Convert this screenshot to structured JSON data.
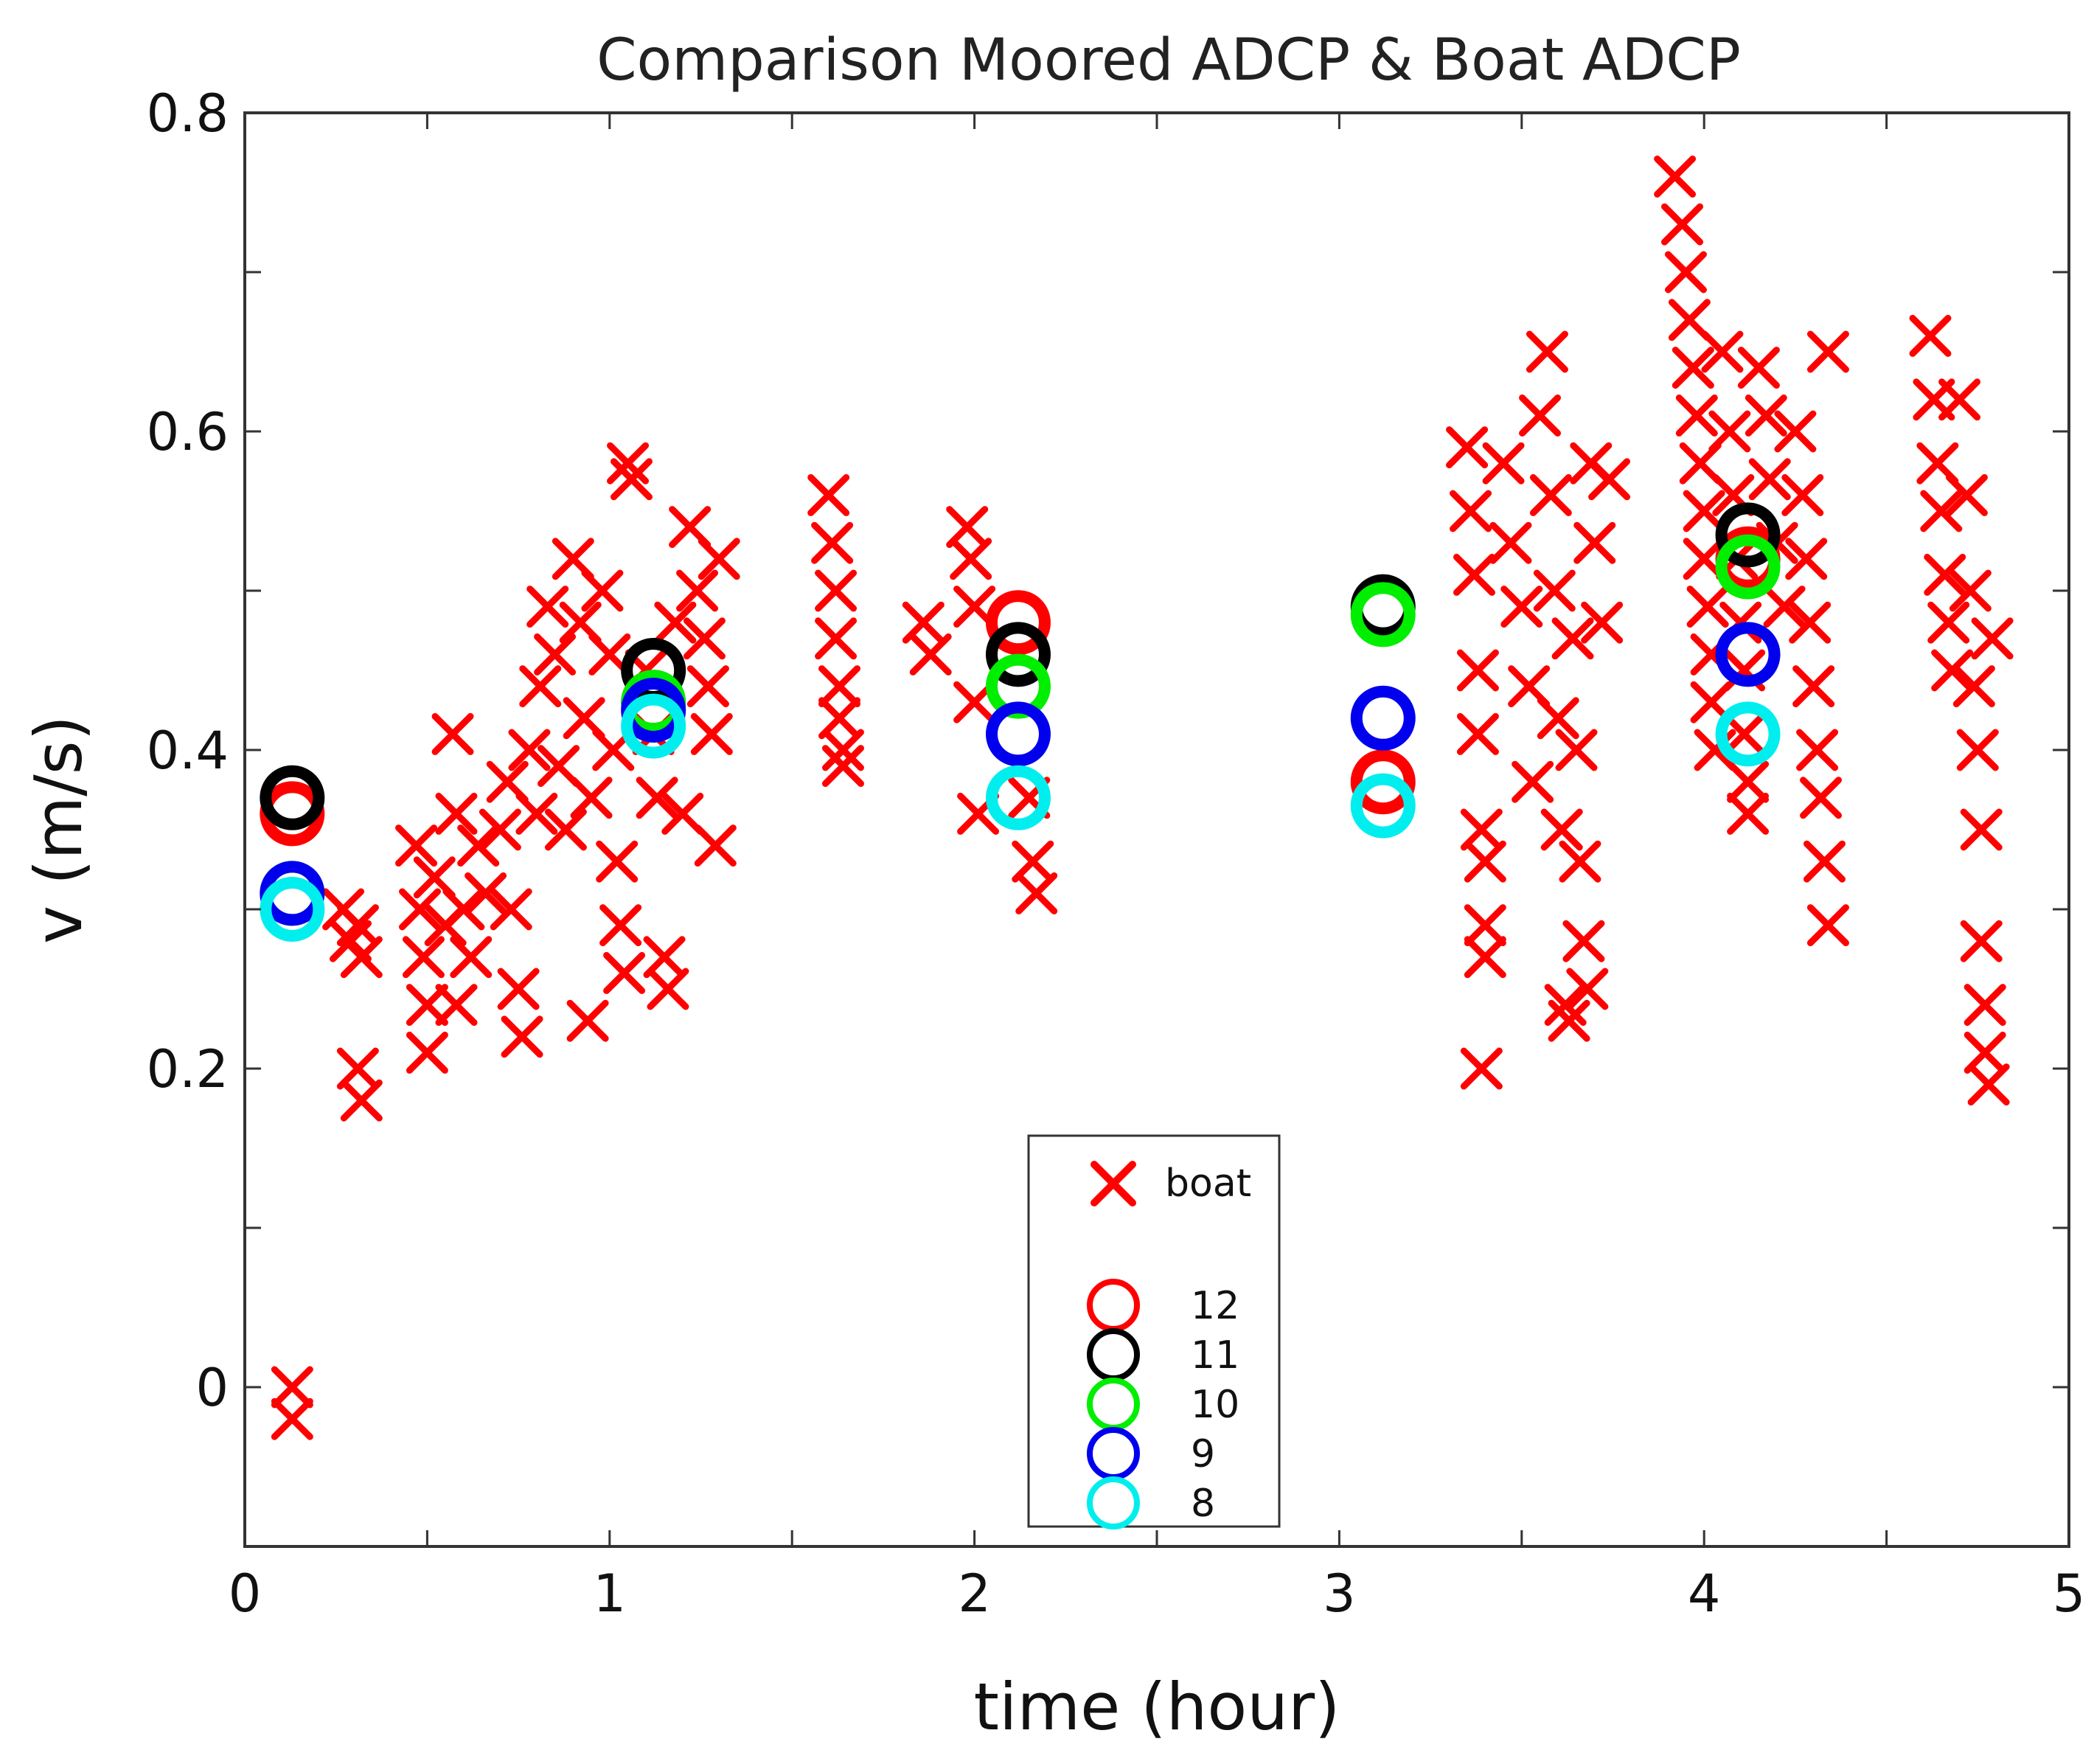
{
  "chart_data": {
    "type": "scatter",
    "title": "Comparison Moored ADCP & Boat ADCP",
    "xlabel": "time (hour)",
    "ylabel": "v (m/s)",
    "xlim": [
      0,
      5
    ],
    "ylim": [
      -0.1,
      0.8
    ],
    "xticks": [
      0,
      1,
      2,
      3,
      4,
      5
    ],
    "xtick_labels": [
      "0",
      "1",
      "2",
      "3",
      "4",
      "5"
    ],
    "yticks": [
      0,
      0.2,
      0.4,
      0.6,
      0.8
    ],
    "ytick_labels": [
      "0",
      "0.2",
      "0.4",
      "0.6",
      "0.8"
    ],
    "grid": false,
    "legend_position": "bottom-center",
    "boat_series": {
      "name": "boat",
      "marker": "x",
      "color": "#ff0000",
      "points": [
        [
          0.13,
          0.0
        ],
        [
          0.13,
          -0.02
        ],
        [
          0.27,
          0.3
        ],
        [
          0.29,
          0.28
        ],
        [
          0.31,
          0.29
        ],
        [
          0.32,
          0.27
        ],
        [
          0.31,
          0.2
        ],
        [
          0.32,
          0.18
        ],
        [
          0.47,
          0.34
        ],
        [
          0.48,
          0.3
        ],
        [
          0.49,
          0.27
        ],
        [
          0.5,
          0.24
        ],
        [
          0.5,
          0.21
        ],
        [
          0.52,
          0.32
        ],
        [
          0.55,
          0.29
        ],
        [
          0.57,
          0.41
        ],
        [
          0.58,
          0.36
        ],
        [
          0.58,
          0.24
        ],
        [
          0.6,
          0.3
        ],
        [
          0.62,
          0.27
        ],
        [
          0.64,
          0.34
        ],
        [
          0.66,
          0.31
        ],
        [
          0.7,
          0.35
        ],
        [
          0.72,
          0.38
        ],
        [
          0.73,
          0.3
        ],
        [
          0.75,
          0.25
        ],
        [
          0.76,
          0.22
        ],
        [
          0.78,
          0.4
        ],
        [
          0.8,
          0.36
        ],
        [
          0.81,
          0.44
        ],
        [
          0.83,
          0.49
        ],
        [
          0.85,
          0.46
        ],
        [
          0.86,
          0.39
        ],
        [
          0.88,
          0.35
        ],
        [
          0.9,
          0.52
        ],
        [
          0.92,
          0.48
        ],
        [
          0.93,
          0.42
        ],
        [
          0.94,
          0.23
        ],
        [
          0.95,
          0.37
        ],
        [
          0.98,
          0.5
        ],
        [
          1.0,
          0.46
        ],
        [
          1.01,
          0.4
        ],
        [
          1.02,
          0.33
        ],
        [
          1.03,
          0.29
        ],
        [
          1.04,
          0.26
        ],
        [
          1.05,
          0.58
        ],
        [
          1.06,
          0.57
        ],
        [
          1.1,
          0.45
        ],
        [
          1.12,
          0.41
        ],
        [
          1.13,
          0.37
        ],
        [
          1.15,
          0.27
        ],
        [
          1.16,
          0.25
        ],
        [
          1.18,
          0.48
        ],
        [
          1.2,
          0.36
        ],
        [
          1.22,
          0.54
        ],
        [
          1.24,
          0.5
        ],
        [
          1.26,
          0.47
        ],
        [
          1.27,
          0.44
        ],
        [
          1.28,
          0.41
        ],
        [
          1.29,
          0.34
        ],
        [
          1.3,
          0.52
        ],
        [
          1.6,
          0.56
        ],
        [
          1.61,
          0.53
        ],
        [
          1.62,
          0.5
        ],
        [
          1.62,
          0.47
        ],
        [
          1.63,
          0.44
        ],
        [
          1.63,
          0.42
        ],
        [
          1.64,
          0.4
        ],
        [
          1.64,
          0.39
        ],
        [
          1.86,
          0.48
        ],
        [
          1.88,
          0.46
        ],
        [
          1.98,
          0.54
        ],
        [
          1.99,
          0.52
        ],
        [
          2.0,
          0.49
        ],
        [
          2.0,
          0.43
        ],
        [
          2.01,
          0.36
        ],
        [
          2.15,
          0.37
        ],
        [
          2.16,
          0.33
        ],
        [
          2.17,
          0.31
        ],
        [
          3.35,
          0.59
        ],
        [
          3.36,
          0.55
        ],
        [
          3.37,
          0.51
        ],
        [
          3.38,
          0.45
        ],
        [
          3.38,
          0.41
        ],
        [
          3.39,
          0.35
        ],
        [
          3.4,
          0.33
        ],
        [
          3.4,
          0.29
        ],
        [
          3.4,
          0.27
        ],
        [
          3.39,
          0.2
        ],
        [
          3.45,
          0.58
        ],
        [
          3.47,
          0.53
        ],
        [
          3.5,
          0.49
        ],
        [
          3.52,
          0.44
        ],
        [
          3.53,
          0.38
        ],
        [
          3.55,
          0.61
        ],
        [
          3.57,
          0.65
        ],
        [
          3.58,
          0.56
        ],
        [
          3.59,
          0.5
        ],
        [
          3.6,
          0.42
        ],
        [
          3.61,
          0.35
        ],
        [
          3.62,
          0.24
        ],
        [
          3.63,
          0.23
        ],
        [
          3.64,
          0.47
        ],
        [
          3.65,
          0.4
        ],
        [
          3.66,
          0.33
        ],
        [
          3.67,
          0.28
        ],
        [
          3.68,
          0.25
        ],
        [
          3.69,
          0.58
        ],
        [
          3.7,
          0.53
        ],
        [
          3.72,
          0.48
        ],
        [
          3.74,
          0.57
        ],
        [
          3.92,
          0.76
        ],
        [
          3.94,
          0.73
        ],
        [
          3.95,
          0.7
        ],
        [
          3.96,
          0.67
        ],
        [
          3.97,
          0.64
        ],
        [
          3.98,
          0.61
        ],
        [
          3.99,
          0.58
        ],
        [
          4.0,
          0.55
        ],
        [
          4.0,
          0.52
        ],
        [
          4.01,
          0.49
        ],
        [
          4.02,
          0.46
        ],
        [
          4.02,
          0.43
        ],
        [
          4.03,
          0.4
        ],
        [
          4.05,
          0.65
        ],
        [
          4.07,
          0.6
        ],
        [
          4.08,
          0.56
        ],
        [
          4.09,
          0.52
        ],
        [
          4.1,
          0.48
        ],
        [
          4.11,
          0.45
        ],
        [
          4.11,
          0.41
        ],
        [
          4.12,
          0.38
        ],
        [
          4.12,
          0.36
        ],
        [
          4.15,
          0.64
        ],
        [
          4.17,
          0.61
        ],
        [
          4.18,
          0.57
        ],
        [
          4.2,
          0.53
        ],
        [
          4.22,
          0.49
        ],
        [
          4.25,
          0.6
        ],
        [
          4.27,
          0.56
        ],
        [
          4.28,
          0.52
        ],
        [
          4.29,
          0.48
        ],
        [
          4.3,
          0.44
        ],
        [
          4.31,
          0.4
        ],
        [
          4.32,
          0.37
        ],
        [
          4.33,
          0.33
        ],
        [
          4.34,
          0.29
        ],
        [
          4.34,
          0.65
        ],
        [
          4.62,
          0.66
        ],
        [
          4.63,
          0.62
        ],
        [
          4.64,
          0.58
        ],
        [
          4.65,
          0.55
        ],
        [
          4.66,
          0.51
        ],
        [
          4.67,
          0.48
        ],
        [
          4.68,
          0.45
        ],
        [
          4.7,
          0.62
        ],
        [
          4.72,
          0.56
        ],
        [
          4.73,
          0.5
        ],
        [
          4.74,
          0.44
        ],
        [
          4.75,
          0.4
        ],
        [
          4.76,
          0.35
        ],
        [
          4.76,
          0.28
        ],
        [
          4.77,
          0.24
        ],
        [
          4.77,
          0.21
        ],
        [
          4.78,
          0.19
        ],
        [
          4.79,
          0.47
        ]
      ]
    },
    "moored_series": [
      {
        "name": "12",
        "color": "#ff0000",
        "points": [
          [
            0.13,
            0.36
          ],
          [
            1.12,
            0.43
          ],
          [
            2.12,
            0.48
          ],
          [
            3.12,
            0.38
          ],
          [
            4.12,
            0.52
          ]
        ]
      },
      {
        "name": "11",
        "color": "#000000",
        "points": [
          [
            0.13,
            0.37
          ],
          [
            1.12,
            0.45
          ],
          [
            2.12,
            0.46
          ],
          [
            3.12,
            0.49
          ],
          [
            4.12,
            0.535
          ]
        ]
      },
      {
        "name": "10",
        "color": "#00ee00",
        "points": [
          [
            0.13,
            0.31
          ],
          [
            1.12,
            0.43
          ],
          [
            2.12,
            0.44
          ],
          [
            3.12,
            0.485
          ],
          [
            4.12,
            0.515
          ]
        ]
      },
      {
        "name": "9",
        "color": "#0000ee",
        "points": [
          [
            0.13,
            0.31
          ],
          [
            1.12,
            0.425
          ],
          [
            2.12,
            0.41
          ],
          [
            3.12,
            0.42
          ],
          [
            4.12,
            0.46
          ]
        ]
      },
      {
        "name": "8",
        "color": "#00eeee",
        "points": [
          [
            0.13,
            0.3
          ],
          [
            1.12,
            0.415
          ],
          [
            2.12,
            0.37
          ],
          [
            3.12,
            0.365
          ],
          [
            4.12,
            0.41
          ]
        ]
      }
    ]
  }
}
